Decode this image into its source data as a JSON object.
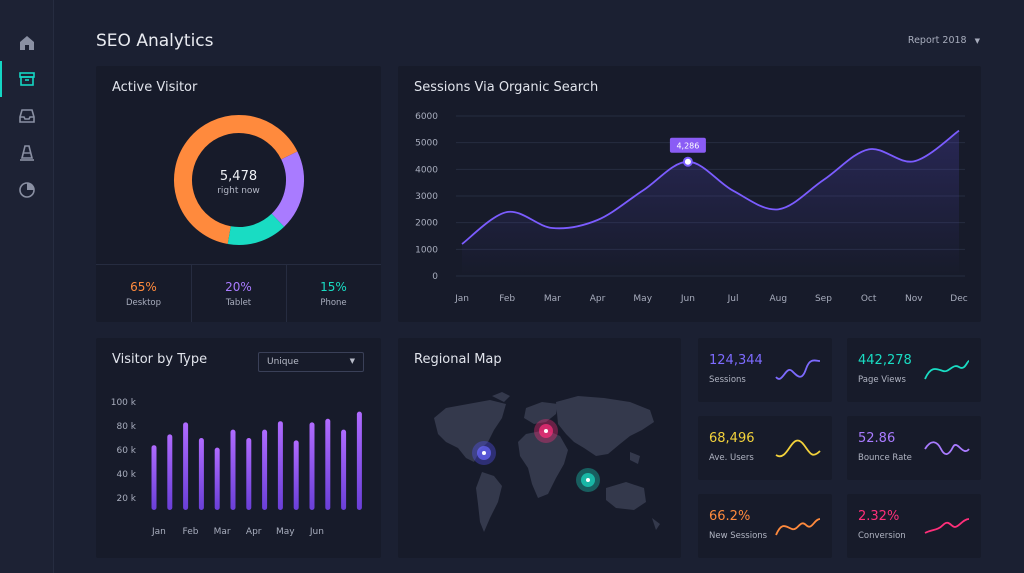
{
  "header": {
    "title": "SEO Analytics",
    "report_label": "Report 2018"
  },
  "sidebar": {
    "items": [
      {
        "icon": "home-icon"
      },
      {
        "icon": "archive-icon",
        "active": true
      },
      {
        "icon": "inbox-icon"
      },
      {
        "icon": "cone-icon"
      },
      {
        "icon": "pie-chart-icon"
      }
    ]
  },
  "active_visitor": {
    "title": "Active Visitor",
    "center_value": "5,478",
    "center_label": "right now",
    "legend": [
      {
        "pct": "65%",
        "label": "Desktop",
        "color": "#ff8a3d"
      },
      {
        "pct": "20%",
        "label": "Tablet",
        "color": "#a97bff"
      },
      {
        "pct": "15%",
        "label": "Phone",
        "color": "#19dcc3"
      }
    ]
  },
  "sessions": {
    "title": "Sessions Via Organic Search",
    "tooltip": "4,286"
  },
  "visitor_type": {
    "title": "Visitor by Type",
    "select_value": "Unique"
  },
  "regional_map": {
    "title": "Regional Map"
  },
  "stats": [
    {
      "value": "124,344",
      "label": "Sessions",
      "color": "#7d6bff"
    },
    {
      "value": "442,278",
      "label": "Page Views",
      "color": "#19dcc3"
    },
    {
      "value": "68,496",
      "label": "Ave. Users",
      "color": "#f3d23b"
    },
    {
      "value": "52.86",
      "label": "Bounce Rate",
      "color": "#a97bff"
    },
    {
      "value": "66.2%",
      "label": "New Sessions",
      "color": "#ff8a3d"
    },
    {
      "value": "2.32%",
      "label": "Conversion",
      "color": "#ff2f7a"
    }
  ],
  "chart_data": [
    {
      "type": "pie",
      "title": "Active Visitor",
      "categories": [
        "Desktop",
        "Tablet",
        "Phone"
      ],
      "values": [
        65,
        20,
        15
      ],
      "colors": [
        "#ff8a3d",
        "#a97bff",
        "#19dcc3"
      ]
    },
    {
      "type": "line",
      "title": "Sessions Via Organic Search",
      "categories": [
        "Jan",
        "Feb",
        "Mar",
        "Apr",
        "May",
        "Jun",
        "Jul",
        "Aug",
        "Sep",
        "Oct",
        "Nov",
        "Dec"
      ],
      "y_ticks": [
        "6000",
        "5000",
        "4000",
        "3000",
        "2000",
        "1000",
        "0"
      ],
      "ylim": [
        0,
        6000
      ],
      "series": [
        {
          "values": [
            1200,
            2400,
            1800,
            2100,
            3200,
            4286,
            3200,
            2500,
            3600,
            4750,
            4300,
            5450
          ]
        }
      ]
    },
    {
      "type": "bar",
      "title": "Visitor by Type",
      "x_ticks": [
        "Jan",
        "Feb",
        "Mar",
        "Apr",
        "May",
        "Jun"
      ],
      "y_ticks": [
        "100 k",
        "80 k",
        "60 k",
        "40 k",
        "20 k"
      ],
      "ylim": [
        10,
        100
      ],
      "values": [
        64,
        73,
        83,
        70,
        62,
        77,
        70,
        77,
        84,
        68,
        83,
        86,
        77,
        92
      ]
    }
  ]
}
